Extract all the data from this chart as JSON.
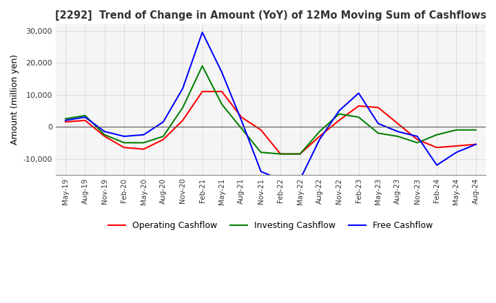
{
  "title": "[2292]  Trend of Change in Amount (YoY) of 12Mo Moving Sum of Cashflows",
  "ylabel": "Amount (million yen)",
  "ylim": [
    -15000,
    32000
  ],
  "yticks": [
    -10000,
    0,
    10000,
    20000,
    30000
  ],
  "x_labels": [
    "May-19",
    "Aug-19",
    "Nov-19",
    "Feb-20",
    "May-20",
    "Aug-20",
    "Nov-20",
    "Feb-21",
    "May-21",
    "Aug-21",
    "Nov-21",
    "Feb-22",
    "May-22",
    "Aug-22",
    "Nov-22",
    "Feb-23",
    "May-23",
    "Aug-23",
    "Nov-23",
    "Feb-24",
    "May-24",
    "Aug-24"
  ],
  "operating": [
    1500,
    2000,
    -3000,
    -6500,
    -7000,
    -4000,
    2000,
    11000,
    11000,
    3000,
    -1000,
    -8500,
    -8500,
    -3000,
    2000,
    6500,
    6000,
    1000,
    -4000,
    -6500,
    -6000,
    -5500
  ],
  "investing": [
    2500,
    3500,
    -2500,
    -5000,
    -5000,
    -3000,
    6000,
    19000,
    7000,
    -500,
    -8000,
    -8500,
    -8500,
    -1500,
    4000,
    3000,
    -2000,
    -3000,
    -5000,
    -2500,
    -1000,
    -1000
  ],
  "free": [
    2000,
    3000,
    -1500,
    -3000,
    -2500,
    1500,
    12000,
    29500,
    17000,
    2000,
    -14000,
    -16500,
    -16500,
    -4000,
    5000,
    10500,
    1000,
    -1500,
    -3000,
    -12000,
    -8000,
    -5500
  ],
  "operating_color": "#ff0000",
  "investing_color": "#008000",
  "free_color": "#0000ff",
  "bg_color": "#ffffff",
  "plot_bg_color": "#f5f5f5",
  "grid_color": "#aaaaaa",
  "zero_line_color": "#555555",
  "title_color": "#333333"
}
